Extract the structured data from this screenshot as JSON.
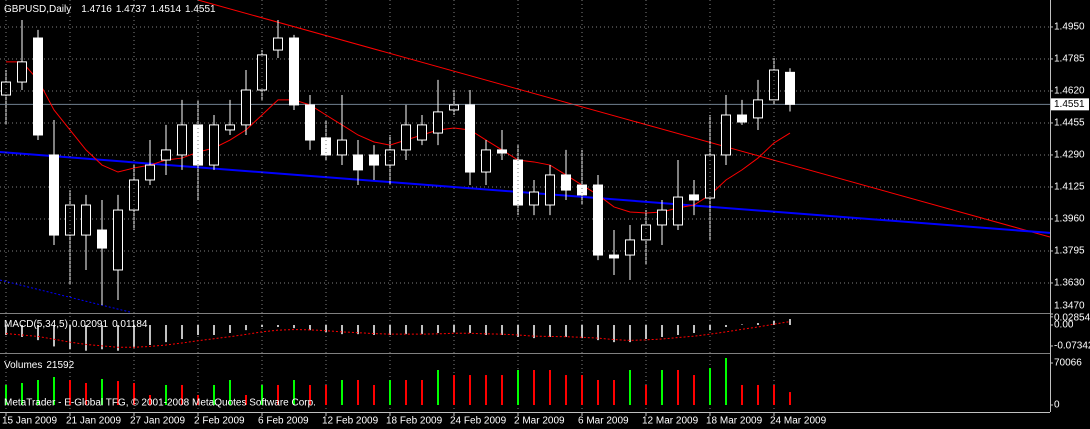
{
  "chart_data": [
    {
      "type": "candlestick",
      "title": "GBPUSD,Daily",
      "categories": [
        "15 Jan 2009",
        null,
        null,
        null,
        "21 Jan 2009",
        null,
        null,
        null,
        "27 Jan 2009",
        null,
        null,
        null,
        "2 Feb 2009",
        null,
        null,
        null,
        "6 Feb 2009",
        null,
        null,
        null,
        "12 Feb 2009",
        null,
        null,
        null,
        "18 Feb 2009",
        null,
        null,
        null,
        "24 Feb 2009",
        null,
        null,
        null,
        "2 Mar 2009",
        null,
        null,
        null,
        "6 Mar 2009",
        null,
        null,
        null,
        "12 Mar 2009",
        null,
        null,
        null,
        "18 Mar 2009",
        null,
        null,
        null,
        "24 Mar 2009",
        null
      ],
      "open": [
        1.4599,
        1.4666,
        1.4893,
        1.429,
        1.3877,
        1.3877,
        1.3903,
        1.3697,
        1.4006,
        1.4161,
        1.4264,
        1.429,
        1.4445,
        1.4238,
        1.4419,
        1.4445,
        1.4625,
        1.4831,
        1.4893,
        1.4548,
        1.4378,
        1.429,
        1.429,
        1.429,
        1.4238,
        1.4316,
        1.4367,
        1.4403,
        1.4522,
        1.4548,
        1.4202,
        1.4316,
        1.4264,
        1.4032,
        1.4032,
        1.4187,
        1.4135,
        1.4135,
        1.3774,
        1.3774,
        1.3852,
        1.3929,
        1.3929,
        1.4084,
        1.4068,
        1.429,
        1.4496,
        1.4481,
        1.4574,
        1.4716
      ],
      "high": [
        1.4728,
        1.4986,
        1.4935,
        1.447,
        1.4109,
        1.4084,
        1.4058,
        1.4084,
        1.4238,
        1.4367,
        1.4445,
        1.4574,
        1.4574,
        1.4496,
        1.4574,
        1.4728,
        1.4831,
        1.4986,
        1.4909,
        1.4599,
        1.447,
        1.4599,
        1.4367,
        1.4341,
        1.4393,
        1.4548,
        1.4496,
        1.4677,
        1.4625,
        1.4625,
        1.4367,
        1.4419,
        1.4341,
        1.4161,
        1.4238,
        1.4316,
        1.4316,
        1.4187,
        1.3903,
        1.3929,
        1.4006,
        1.4058,
        1.4264,
        1.4161,
        1.4496,
        1.4599,
        1.4574,
        1.4677,
        1.479,
        1.4737
      ],
      "low": [
        1.4445,
        1.4625,
        1.4367,
        1.3826,
        1.362,
        1.3697,
        1.3516,
        1.3542,
        1.3903,
        1.4135,
        1.4187,
        1.4213,
        1.4058,
        1.4213,
        1.4393,
        1.4393,
        1.4574,
        1.479,
        1.4522,
        1.4316,
        1.4264,
        1.4238,
        1.4135,
        1.4161,
        1.4135,
        1.4264,
        1.4341,
        1.4341,
        1.4496,
        1.4135,
        1.4135,
        1.4264,
        1.398,
        1.398,
        1.398,
        1.4058,
        1.4032,
        1.3748,
        1.3671,
        1.3645,
        1.3723,
        1.3826,
        1.3903,
        1.398,
        1.3852,
        1.4238,
        1.4445,
        1.4419,
        1.4548,
        1.4514
      ],
      "close": [
        1.4666,
        1.477,
        1.4393,
        1.3877,
        1.4032,
        1.4032,
        1.381,
        1.4006,
        1.4161,
        1.4238,
        1.4316,
        1.4445,
        1.4238,
        1.4445,
        1.4445,
        1.4625,
        1.4806,
        1.4893,
        1.4548,
        1.4367,
        1.429,
        1.4367,
        1.4213,
        1.4238,
        1.4316,
        1.4445,
        1.4445,
        1.4512,
        1.4548,
        1.4202,
        1.4316,
        1.43,
        1.4032,
        1.4099,
        1.4187,
        1.4109,
        1.4084,
        1.3774,
        1.3759,
        1.3852,
        1.3929,
        1.4006,
        1.4073,
        1.4058,
        1.429,
        1.4496,
        1.446,
        1.4574,
        1.4728,
        1.4551
      ],
      "up_color": "#000000",
      "down_color": "#ffffff",
      "outline_color": "#ffffff",
      "ma": {
        "color": "#ff0000",
        "values": [
          1.477,
          1.477,
          1.4677,
          1.4522,
          1.4419,
          1.4316,
          1.4238,
          1.4202,
          1.4223,
          1.4238,
          1.4264,
          1.4274,
          1.4305,
          1.4326,
          1.4367,
          1.4419,
          1.4496,
          1.4574,
          1.4574,
          1.4548,
          1.4496,
          1.4445,
          1.4393,
          1.4357,
          1.4341,
          1.4367,
          1.4393,
          1.4419,
          1.4429,
          1.4419,
          1.4367,
          1.4316,
          1.4264,
          1.4254,
          1.4238,
          1.4187,
          1.4135,
          1.4084,
          1.4022,
          1.3996,
          1.3991,
          1.3996,
          1.4017,
          1.4032,
          1.4084,
          1.4161,
          1.4213,
          1.4274,
          1.4352,
          1.4403
        ]
      },
      "trendlines": [
        {
          "color": "#ff0000",
          "x": [
            12,
            65.25
          ],
          "values": [
            1.5089,
            1.3867
          ]
        },
        {
          "color": "#0000ff",
          "x": [
            -0.375,
            65.25
          ],
          "values": [
            1.4305,
            1.3888
          ]
        },
        {
          "color": "#0000ff",
          "dashed": true,
          "x": [
            -0.375,
            7.75
          ],
          "values": [
            1.3645,
            1.348
          ]
        }
      ],
      "bid_color": "#708090",
      "ylim": [
        1.347,
        1.5089
      ],
      "yticks": [
        {
          "value": 1.495,
          "label": "1.4950"
        },
        1.4785,
        {
          "value": 1.462,
          "label": "1.4620"
        },
        1.4455,
        {
          "value": 1.429,
          "label": "1.4290"
        },
        1.4125,
        {
          "value": 1.396,
          "label": "1.3960"
        },
        1.3795,
        {
          "value": 1.363,
          "label": "1.3630"
        },
        {
          "value": 1.347,
          "label": "1.3470"
        }
      ],
      "grid": true
    },
    {
      "type": "macd",
      "title": "MACD(5,34,5)",
      "values": [
        -0.035,
        -0.042,
        -0.053,
        -0.075,
        -0.085,
        -0.09,
        -0.085,
        -0.09,
        -0.08,
        -0.07,
        -0.06,
        -0.049,
        -0.035,
        -0.035,
        -0.028,
        -0.018,
        -0.007,
        -0.007,
        -0.011,
        -0.018,
        -0.025,
        -0.032,
        -0.032,
        -0.035,
        -0.035,
        -0.032,
        -0.032,
        -0.028,
        -0.025,
        -0.028,
        -0.035,
        -0.035,
        -0.042,
        -0.046,
        -0.042,
        -0.042,
        -0.046,
        -0.053,
        -0.06,
        -0.06,
        -0.049,
        -0.042,
        -0.035,
        -0.028,
        -0.018,
        -0.007,
        0.002,
        0.007,
        0.014,
        0.02091
      ],
      "signal": [
        -0.03,
        -0.035,
        -0.04,
        -0.05,
        -0.06,
        -0.068,
        -0.073,
        -0.078,
        -0.078,
        -0.075,
        -0.07,
        -0.063,
        -0.055,
        -0.048,
        -0.041,
        -0.033,
        -0.024,
        -0.018,
        -0.016,
        -0.017,
        -0.02,
        -0.024,
        -0.027,
        -0.03,
        -0.032,
        -0.032,
        -0.032,
        -0.031,
        -0.029,
        -0.029,
        -0.031,
        -0.032,
        -0.035,
        -0.039,
        -0.04,
        -0.041,
        -0.043,
        -0.046,
        -0.051,
        -0.054,
        -0.052,
        -0.049,
        -0.044,
        -0.039,
        -0.032,
        -0.024,
        -0.015,
        -0.007,
        0.003,
        0.01184
      ],
      "bar_color": "#c0c0c0",
      "signal_color": "#ff0000",
      "ylim": [
        -0.0945,
        0.0385
      ],
      "yticks": [
        0.02854,
        {
          "value": 0,
          "label": "0.00"
        },
        -0.07342
      ]
    },
    {
      "type": "volume",
      "title": "Volumes",
      "values": [
        33400,
        36700,
        41700,
        46700,
        41700,
        36700,
        43400,
        40000,
        36700,
        16700,
        33400,
        33400,
        16700,
        33400,
        41700,
        16700,
        33400,
        33400,
        41700,
        33400,
        33400,
        41700,
        41700,
        33400,
        41700,
        41700,
        41700,
        58400,
        50000,
        50000,
        50000,
        50000,
        58400,
        58400,
        58400,
        50000,
        50000,
        41700,
        41700,
        58400,
        33400,
        58400,
        58400,
        50000,
        61700,
        78400,
        33400,
        33400,
        33400,
        21592
      ],
      "up_color": "#00ff00",
      "down_color": "#ff0000",
      "ylim": [
        0,
        83400
      ],
      "yticks": [
        70066,
        0
      ]
    }
  ],
  "watermark": "MetaTrader - E-Global TFG, © 2001-2008 MetaQuotes Software Corp."
}
